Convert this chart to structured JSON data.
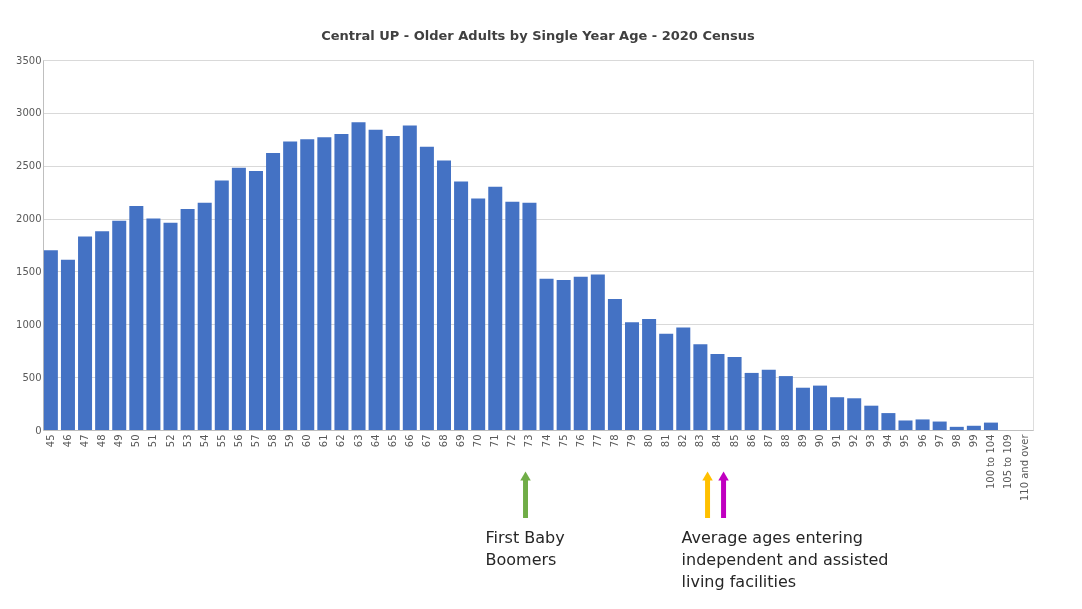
{
  "chart_data": {
    "type": "bar",
    "title": "Central UP - Older Adults by Single Year Age -  2020 Census",
    "categories": [
      "45",
      "46",
      "47",
      "48",
      "49",
      "50",
      "51",
      "52",
      "53",
      "54",
      "55",
      "56",
      "57",
      "58",
      "59",
      "60",
      "61",
      "62",
      "63",
      "64",
      "65",
      "66",
      "67",
      "68",
      "69",
      "70",
      "71",
      "72",
      "73",
      "74",
      "75",
      "76",
      "77",
      "78",
      "79",
      "80",
      "81",
      "82",
      "83",
      "84",
      "85",
      "86",
      "87",
      "88",
      "89",
      "90",
      "91",
      "92",
      "93",
      "94",
      "95",
      "96",
      "97",
      "98",
      "99",
      "100 to 104",
      "105 to 109",
      "110 and over"
    ],
    "values": [
      1700,
      1610,
      1830,
      1880,
      1980,
      2120,
      2000,
      1960,
      2090,
      2150,
      2360,
      2480,
      2450,
      2620,
      2730,
      2750,
      2770,
      2800,
      2910,
      2840,
      2780,
      2880,
      2680,
      2550,
      2350,
      2190,
      2300,
      2160,
      2150,
      1430,
      1420,
      1450,
      1470,
      1240,
      1020,
      1050,
      910,
      970,
      810,
      720,
      690,
      540,
      570,
      510,
      400,
      420,
      310,
      300,
      230,
      160,
      90,
      100,
      80,
      30,
      40,
      70,
      0,
      0
    ],
    "color": "#4472c4",
    "ylim": [
      0,
      3500
    ],
    "yticks": [
      0,
      500,
      1000,
      1500,
      2000,
      2500,
      3000,
      3500
    ],
    "grid": true,
    "annotations": [
      "First Baby Boomers",
      "Average ages entering independent and assisted living facilities"
    ]
  }
}
